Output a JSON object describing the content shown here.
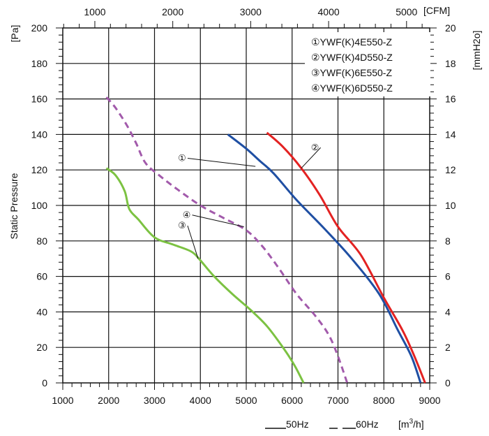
{
  "chart_data": {
    "type": "line",
    "xlabel": "[m3/h]",
    "ylabel": "Static Pressure",
    "x_tick_labels": [
      "1000",
      "2000",
      "3000",
      "4000",
      "5000",
      "6000",
      "7000",
      "8000",
      "9000"
    ],
    "y_tick_labels": [
      "0",
      "20",
      "40",
      "60",
      "80",
      "100",
      "120",
      "140",
      "160",
      "180",
      "200"
    ],
    "xlim": [
      1000,
      9000
    ],
    "ylim": [
      0,
      200
    ],
    "grid": true,
    "top_axis": {
      "unit_label": "[CFM]",
      "tick_labels": [
        "1000",
        "2000",
        "3000",
        "4000",
        "5000"
      ],
      "ticks": [
        1000,
        2000,
        3000,
        4000,
        5000
      ],
      "m3h_per_cfm": 1.699
    },
    "left_unit_label": "[Pa]",
    "right_axis": {
      "unit_label": "[mmH2o]",
      "tick_labels": [
        "0",
        "2",
        "4",
        "6",
        "8",
        "10",
        "12",
        "14",
        "16",
        "18",
        "20"
      ]
    },
    "legend": {
      "position": "top-right",
      "entries": [
        "①YWF(K)4E550-Z",
        "②YWF(K)4D550-Z",
        "③YWF(K)6E550-Z",
        "④YWF(K)6D550-Z"
      ]
    },
    "line_style_key": {
      "solid_label": "50Hz",
      "dashed_label": "60Hz"
    },
    "series": [
      {
        "marker": "①",
        "color": "#1f4fa3",
        "dash": false,
        "x": [
          4600,
          5000,
          5300,
          5600,
          6100,
          6700,
          7300,
          7900,
          8300,
          8600,
          8800
        ],
        "y": [
          140,
          132,
          125,
          118,
          103,
          87,
          70,
          50,
          30,
          15,
          0
        ]
      },
      {
        "marker": "②",
        "color": "#e32222",
        "dash": false,
        "x": [
          5450,
          5800,
          6200,
          6600,
          7000,
          7500,
          8000,
          8400,
          8650,
          8900
        ],
        "y": [
          141,
          133,
          121,
          106,
          88,
          72,
          48,
          30,
          16,
          0
        ]
      },
      {
        "marker": "③",
        "color": "#7cc242",
        "dash": false,
        "x": [
          1950,
          2150,
          2350,
          2450,
          2650,
          3000,
          3400,
          3800,
          4000,
          4300,
          4700,
          5100,
          5450,
          5800,
          6050,
          6250
        ],
        "y": [
          121,
          117,
          108,
          98,
          92,
          82,
          78,
          74,
          69,
          60,
          50,
          41,
          32,
          20,
          10,
          0
        ]
      },
      {
        "marker": "④",
        "color": "#a25aab",
        "dash": true,
        "x": [
          1950,
          2150,
          2400,
          2600,
          2800,
          3100,
          3500,
          4000,
          4500,
          5000,
          5350,
          5700,
          6100,
          6500,
          6800,
          7000,
          7200
        ],
        "y": [
          161,
          155,
          145,
          135,
          124,
          117,
          109,
          100,
          93,
          86,
          77,
          65,
          50,
          38,
          27,
          15,
          0
        ]
      }
    ],
    "callouts": [
      {
        "label": "①",
        "label_at": [
          3600,
          125
        ],
        "target": [
          5200,
          122
        ]
      },
      {
        "label": "②",
        "label_at": [
          6500,
          131
        ],
        "target": [
          6200,
          121
        ]
      },
      {
        "label": "④",
        "label_at": [
          3700,
          93
        ],
        "target": [
          4950,
          88
        ]
      },
      {
        "label": "③",
        "label_at": [
          3600,
          87
        ],
        "target": [
          3950,
          70
        ]
      }
    ]
  }
}
